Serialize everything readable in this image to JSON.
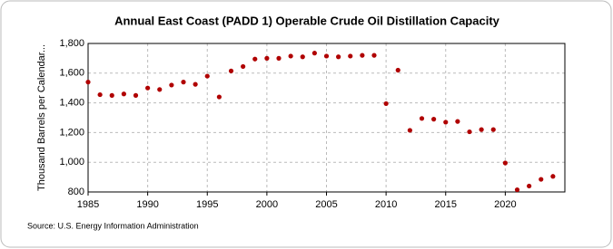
{
  "chart_data": {
    "type": "scatter",
    "title": "Annual East Coast (PADD 1) Operable Crude Oil Distillation Capacity",
    "y_label": "Thousand Barrels per Calendar...",
    "source": "Source: U.S. Energy Information Administration",
    "color": "#b00000",
    "grid": true,
    "x": [
      1985,
      1986,
      1987,
      1988,
      1989,
      1990,
      1991,
      1992,
      1993,
      1994,
      1995,
      1996,
      1997,
      1998,
      1999,
      2000,
      2001,
      2002,
      2003,
      2004,
      2005,
      2006,
      2007,
      2008,
      2009,
      2010,
      2011,
      2012,
      2013,
      2014,
      2015,
      2016,
      2017,
      2018,
      2019,
      2020,
      2021,
      2022,
      2023,
      2024
    ],
    "values": [
      1540,
      1455,
      1450,
      1460,
      1450,
      1500,
      1490,
      1520,
      1540,
      1525,
      1580,
      1440,
      1615,
      1645,
      1695,
      1700,
      1700,
      1715,
      1710,
      1735,
      1715,
      1710,
      1715,
      1720,
      1720,
      1395,
      1620,
      1215,
      1295,
      1290,
      1270,
      1275,
      1205,
      1220,
      1220,
      995,
      815,
      840,
      885,
      905
    ],
    "xlim": [
      1985,
      2025
    ],
    "xticks": [
      1985,
      1990,
      1995,
      2000,
      2005,
      2010,
      2015,
      2020
    ],
    "ylim": [
      800,
      1800
    ],
    "yticks": [
      800,
      {
        "value": 1000,
        "label": "1,000"
      },
      {
        "value": 1200,
        "label": "1,200"
      },
      {
        "value": 1400,
        "label": "1,400"
      },
      {
        "value": 1600,
        "label": "1,600"
      },
      {
        "value": 1800,
        "label": "1,800"
      }
    ]
  }
}
